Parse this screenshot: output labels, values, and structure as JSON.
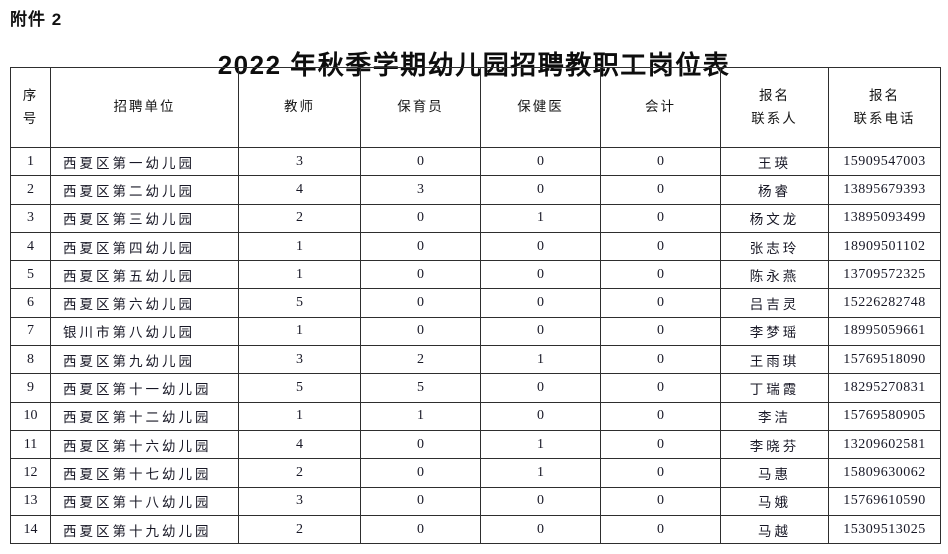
{
  "page": {
    "attachment_label": "附件 2",
    "title": "2022 年秋季学期幼儿园招聘教职工岗位表"
  },
  "table": {
    "columns": [
      {
        "id": "index",
        "label": "序\n号"
      },
      {
        "id": "unit",
        "label": "招聘单位"
      },
      {
        "id": "teacher",
        "label": "教师"
      },
      {
        "id": "nursery",
        "label": "保育员"
      },
      {
        "id": "health",
        "label": "保健医"
      },
      {
        "id": "accountant",
        "label": "会计"
      },
      {
        "id": "contact-name",
        "label": "报名\n联系人"
      },
      {
        "id": "contact-phone",
        "label": "报名\n联系电话"
      }
    ],
    "rows": [
      [
        "1",
        "西夏区第一幼儿园",
        "3",
        "0",
        "0",
        "0",
        "王瑛",
        "15909547003"
      ],
      [
        "2",
        "西夏区第二幼儿园",
        "4",
        "3",
        "0",
        "0",
        "杨睿",
        "13895679393"
      ],
      [
        "3",
        "西夏区第三幼儿园",
        "2",
        "0",
        "1",
        "0",
        "杨文龙",
        "13895093499"
      ],
      [
        "4",
        "西夏区第四幼儿园",
        "1",
        "0",
        "0",
        "0",
        "张志玲",
        "18909501102"
      ],
      [
        "5",
        "西夏区第五幼儿园",
        "1",
        "0",
        "0",
        "0",
        "陈永燕",
        "13709572325"
      ],
      [
        "6",
        "西夏区第六幼儿园",
        "5",
        "0",
        "0",
        "0",
        "吕吉灵",
        "15226282748"
      ],
      [
        "7",
        "银川市第八幼儿园",
        "1",
        "0",
        "0",
        "0",
        "李梦瑶",
        "18995059661"
      ],
      [
        "8",
        "西夏区第九幼儿园",
        "3",
        "2",
        "1",
        "0",
        "王雨琪",
        "15769518090"
      ],
      [
        "9",
        "西夏区第十一幼儿园",
        "5",
        "5",
        "0",
        "0",
        "丁瑞霞",
        "18295270831"
      ],
      [
        "10",
        "西夏区第十二幼儿园",
        "1",
        "1",
        "0",
        "0",
        "李洁",
        "15769580905"
      ],
      [
        "11",
        "西夏区第十六幼儿园",
        "4",
        "0",
        "1",
        "0",
        "李晓芬",
        "13209602581"
      ],
      [
        "12",
        "西夏区第十七幼儿园",
        "2",
        "0",
        "1",
        "0",
        "马惠",
        "15809630062"
      ],
      [
        "13",
        "西夏区第十八幼儿园",
        "3",
        "0",
        "0",
        "0",
        "马娥",
        "15769610590"
      ],
      [
        "14",
        "西夏区第十九幼儿园",
        "2",
        "0",
        "0",
        "0",
        "马越",
        "15309513025"
      ]
    ]
  }
}
